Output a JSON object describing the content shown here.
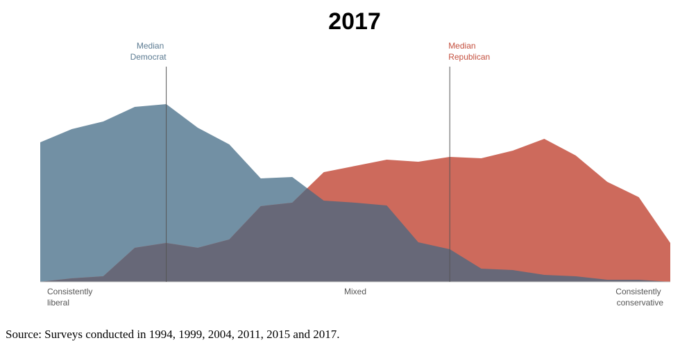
{
  "chart_data": {
    "type": "area",
    "title": "2017",
    "categories": [
      "Consistently liberal",
      null,
      null,
      null,
      null,
      null,
      null,
      null,
      null,
      null,
      "Mixed",
      null,
      null,
      null,
      null,
      null,
      null,
      null,
      null,
      null,
      "Consistently conservative"
    ],
    "series": [
      {
        "name": "Democrat",
        "color": "#7290a4",
        "values": [
          201,
          220,
          231,
          252,
          256,
          222,
          198,
          149,
          151,
          117,
          114,
          110,
          57,
          47,
          19,
          17,
          10,
          8,
          3,
          3,
          0
        ]
      },
      {
        "name": "Republican",
        "color": "#cd6a5c",
        "values": [
          0,
          5,
          8,
          49,
          56,
          49,
          61,
          109,
          114,
          158,
          167,
          176,
          173,
          180,
          178,
          189,
          206,
          182,
          144,
          122,
          56
        ]
      }
    ],
    "overlap_color": "#676878",
    "ylim": [
      0,
      300
    ],
    "medians": [
      {
        "label": "Median Democrat",
        "at": 4,
        "color": "#5b7a91"
      },
      {
        "label": "Median Republican",
        "at": 13,
        "color": "#c4503f"
      }
    ],
    "source": "Source: Surveys conducted in 1994, 1999, 2004, 2011, 2015 and 2017."
  }
}
